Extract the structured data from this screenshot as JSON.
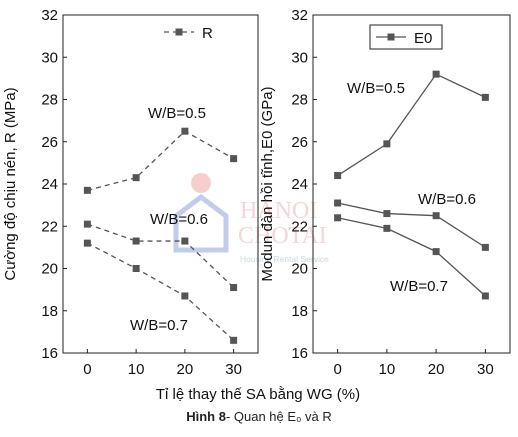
{
  "caption": {
    "label": "Hình 8",
    "text": "- Quan hệ E₀ và R"
  },
  "watermark": {
    "line1": "HANOI",
    "line2": "CHOTAI",
    "tagline": "Housing Rental Service"
  },
  "shared_xlabel": "Tỉ lệ thay thế SA bằng WG (%)",
  "colors": {
    "line": "#555555",
    "axis": "#222222",
    "text": "#111111"
  },
  "chart_data": [
    {
      "type": "line",
      "title": "",
      "xlabel": "Tỉ lệ thay thế SA bằng WG (%)",
      "ylabel": "Cường độ chịu nén, R (MPa)",
      "x": [
        0,
        10,
        20,
        30
      ],
      "xticks": [
        "0",
        "10",
        "20",
        "30"
      ],
      "xlim": [
        -5,
        35
      ],
      "ylim": [
        16,
        32
      ],
      "yticks": [
        "16",
        "18",
        "20",
        "22",
        "24",
        "26",
        "28",
        "30",
        "32"
      ],
      "legend": {
        "entries": [
          "R"
        ],
        "position": "top-right"
      },
      "series": [
        {
          "name": "W/B=0.5",
          "values": [
            23.7,
            24.3,
            26.5,
            25.2
          ],
          "style": "dashed"
        },
        {
          "name": "W/B=0.6",
          "values": [
            22.1,
            21.3,
            21.3,
            19.1
          ],
          "style": "dashed"
        },
        {
          "name": "W/B=0.7",
          "values": [
            21.2,
            20.0,
            18.7,
            16.6
          ],
          "style": "dashed"
        }
      ],
      "annotations": [
        "W/B=0.5",
        "W/B=0.6",
        "W/B=0.7"
      ]
    },
    {
      "type": "line",
      "title": "",
      "xlabel": "Tỉ lệ thay thế SA bằng WG (%)",
      "ylabel": "Modun đàn hồi tĩnh,E0 (GPa)",
      "x": [
        0,
        10,
        20,
        30
      ],
      "xticks": [
        "0",
        "10",
        "20",
        "30"
      ],
      "xlim": [
        -5,
        35
      ],
      "ylim": [
        16,
        32
      ],
      "yticks": [
        "16",
        "18",
        "20",
        "22",
        "24",
        "26",
        "28",
        "30",
        "32"
      ],
      "legend": {
        "entries": [
          "E0"
        ],
        "position": "top-right"
      },
      "series": [
        {
          "name": "W/B=0.5",
          "values": [
            24.4,
            25.9,
            29.2,
            28.1
          ],
          "style": "solid"
        },
        {
          "name": "W/B=0.6",
          "values": [
            23.1,
            22.6,
            22.5,
            21.0
          ],
          "style": "solid"
        },
        {
          "name": "W/B=0.7",
          "values": [
            22.4,
            21.9,
            20.8,
            18.7
          ],
          "style": "solid"
        }
      ],
      "annotations": [
        "W/B=0.5",
        "W/B=0.6",
        "W/B=0.7"
      ]
    }
  ]
}
